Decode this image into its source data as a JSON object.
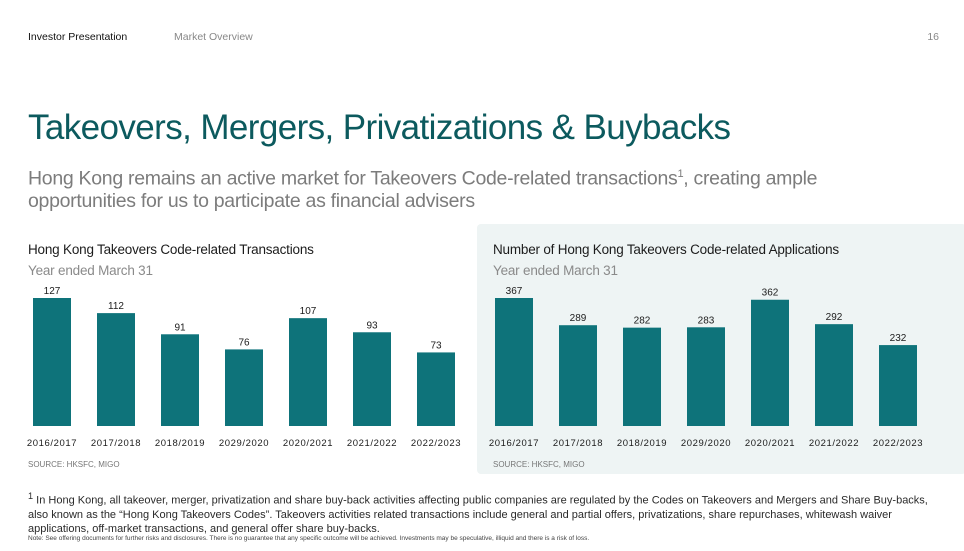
{
  "header": {
    "section": "Investor Presentation",
    "topic": "Market Overview",
    "page_number": "16"
  },
  "title": "Takeovers, Mergers, Privatizations & Buybacks",
  "subtitle": {
    "text1": "Hong Kong remains an active market for Takeovers Code-related transactions",
    "footnote_marker": "1",
    "text2": ", creating ample opportunities for us to participate as financial advisers"
  },
  "colors": {
    "bar": "#0e737a",
    "title": "#0c5a5e",
    "panel_background": "#eef4f4"
  },
  "chart_data": [
    {
      "type": "bar",
      "title": "Hong Kong Takeovers Code-related Transactions",
      "subtitle": "Year ended March 31",
      "categories": [
        "2016/2017",
        "2017/2018",
        "2018/2019",
        "2029/2020",
        "2020/2021",
        "2021/2022",
        "2022/2023"
      ],
      "values": [
        127,
        112,
        91,
        76,
        107,
        93,
        73
      ],
      "source": "SOURCE: HKSFC, MIGO"
    },
    {
      "type": "bar",
      "title": "Number of Hong Kong Takeovers Code-related Applications",
      "subtitle": "Year ended March 31",
      "categories": [
        "2016/2017",
        "2017/2018",
        "2018/2019",
        "2029/2020",
        "2020/2021",
        "2021/2022",
        "2022/2023"
      ],
      "values": [
        367,
        289,
        282,
        283,
        362,
        292,
        232
      ],
      "source": "SOURCE: HKSFC, MIGO"
    }
  ],
  "footnote": {
    "marker": "1",
    "text": "In Hong Kong, all takeover, merger, privatization and share buy-back activities affecting public companies are regulated by the Codes on Takeovers and Mergers and Share Buy-backs, also known as the “Hong Kong Takeovers Codes”. Takeovers activities related transactions include general and partial offers, privatizations, share repurchases, whitewash waiver applications, off-market transactions, and general offer share buy-backs."
  },
  "note": "Note: See offering documents for further risks and disclosures. There is no guarantee that any specific outcome will be achieved. Investments may be speculative, illiquid and there is a risk of loss."
}
